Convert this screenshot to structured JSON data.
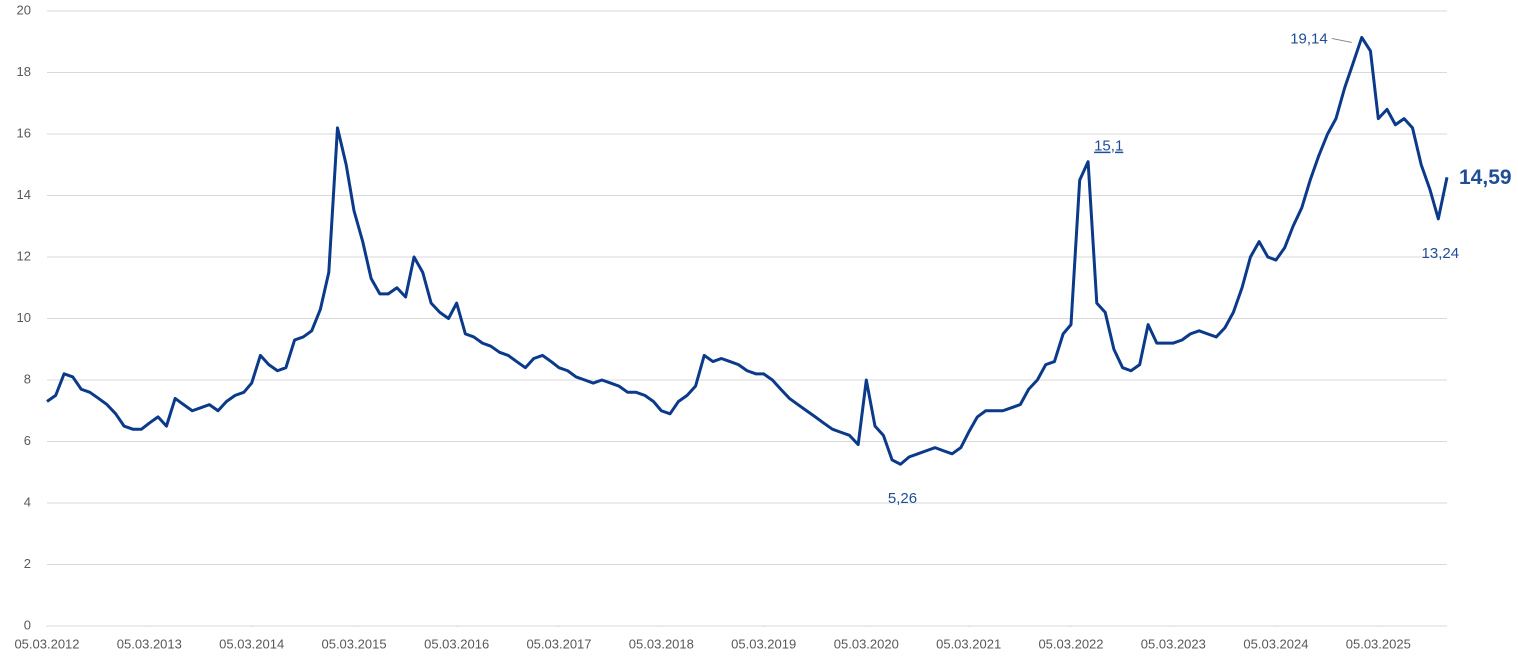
{
  "chart_data": {
    "type": "line",
    "xlim": [
      "05.03.2012",
      "05.11.2025"
    ],
    "xticks": [
      "05.03.2012",
      "05.03.2013",
      "05.03.2014",
      "05.03.2015",
      "05.03.2016",
      "05.03.2017",
      "05.03.2018",
      "05.03.2019",
      "05.03.2020",
      "05.03.2021",
      "05.03.2022",
      "05.03.2023",
      "05.03.2024",
      "05.03.2025"
    ],
    "ylim": [
      0,
      20
    ],
    "yticks": [
      0,
      2,
      4,
      6,
      8,
      10,
      12,
      14,
      16,
      18,
      20
    ],
    "grid": true,
    "x": [
      "05.03.2012",
      "05.04.2012",
      "05.05.2012",
      "05.06.2012",
      "05.07.2012",
      "05.08.2012",
      "05.09.2012",
      "05.10.2012",
      "05.11.2012",
      "05.12.2012",
      "05.01.2013",
      "05.02.2013",
      "05.03.2013",
      "05.04.2013",
      "05.05.2013",
      "05.06.2013",
      "05.07.2013",
      "05.08.2013",
      "05.09.2013",
      "05.10.2013",
      "05.11.2013",
      "05.12.2013",
      "05.01.2014",
      "05.02.2014",
      "05.03.2014",
      "05.04.2014",
      "05.05.2014",
      "05.06.2014",
      "05.07.2014",
      "05.08.2014",
      "05.09.2014",
      "05.10.2014",
      "05.11.2014",
      "05.12.2014",
      "05.01.2015",
      "05.02.2015",
      "05.03.2015",
      "05.04.2015",
      "05.05.2015",
      "05.06.2015",
      "05.07.2015",
      "05.08.2015",
      "05.09.2015",
      "05.10.2015",
      "05.11.2015",
      "05.12.2015",
      "05.01.2016",
      "05.02.2016",
      "05.03.2016",
      "05.04.2016",
      "05.05.2016",
      "05.06.2016",
      "05.07.2016",
      "05.08.2016",
      "05.09.2016",
      "05.10.2016",
      "05.11.2016",
      "05.12.2016",
      "05.01.2017",
      "05.02.2017",
      "05.03.2017",
      "05.04.2017",
      "05.05.2017",
      "05.06.2017",
      "05.07.2017",
      "05.08.2017",
      "05.09.2017",
      "05.10.2017",
      "05.11.2017",
      "05.12.2017",
      "05.01.2018",
      "05.02.2018",
      "05.03.2018",
      "05.04.2018",
      "05.05.2018",
      "05.06.2018",
      "05.07.2018",
      "05.08.2018",
      "05.09.2018",
      "05.10.2018",
      "05.11.2018",
      "05.12.2018",
      "05.01.2019",
      "05.02.2019",
      "05.03.2019",
      "05.04.2019",
      "05.05.2019",
      "05.06.2019",
      "05.07.2019",
      "05.08.2019",
      "05.09.2019",
      "05.10.2019",
      "05.11.2019",
      "05.12.2019",
      "05.01.2020",
      "05.02.2020",
      "05.03.2020",
      "05.04.2020",
      "05.05.2020",
      "05.06.2020",
      "05.07.2020",
      "05.08.2020",
      "05.09.2020",
      "05.10.2020",
      "05.11.2020",
      "05.12.2020",
      "05.01.2021",
      "05.02.2021",
      "05.03.2021",
      "05.04.2021",
      "05.05.2021",
      "05.06.2021",
      "05.07.2021",
      "05.08.2021",
      "05.09.2021",
      "05.10.2021",
      "05.11.2021",
      "05.12.2021",
      "05.01.2022",
      "05.02.2022",
      "05.03.2022",
      "05.04.2022",
      "05.05.2022",
      "05.06.2022",
      "05.07.2022",
      "05.08.2022",
      "05.09.2022",
      "05.10.2022",
      "05.11.2022",
      "05.12.2022",
      "05.01.2023",
      "05.02.2023",
      "05.03.2023",
      "05.04.2023",
      "05.05.2023",
      "05.06.2023",
      "05.07.2023",
      "05.08.2023",
      "05.09.2023",
      "05.10.2023",
      "05.11.2023",
      "05.12.2023",
      "05.01.2024",
      "05.02.2024",
      "05.03.2024",
      "05.04.2024",
      "05.05.2024",
      "05.06.2024",
      "05.07.2024",
      "05.08.2024",
      "05.09.2024",
      "05.10.2024",
      "05.11.2024",
      "05.12.2024",
      "05.01.2025",
      "05.02.2025",
      "05.03.2025",
      "05.04.2025",
      "05.05.2025",
      "05.06.2025",
      "05.07.2025",
      "05.08.2025",
      "05.09.2025",
      "05.10.2025",
      "05.11.2025"
    ],
    "series": [
      {
        "color": "#0b3a8a",
        "values": [
          7.3,
          7.5,
          8.2,
          8.1,
          7.7,
          7.6,
          7.4,
          7.2,
          6.9,
          6.5,
          6.4,
          6.4,
          6.6,
          6.8,
          6.5,
          7.4,
          7.2,
          7.0,
          7.1,
          7.2,
          7.0,
          7.3,
          7.5,
          7.6,
          7.9,
          8.8,
          8.5,
          8.3,
          8.4,
          9.3,
          9.4,
          9.6,
          10.3,
          11.5,
          16.2,
          15.0,
          13.5,
          12.5,
          11.3,
          10.8,
          10.8,
          11.0,
          10.7,
          12.0,
          11.5,
          10.5,
          10.2,
          10.0,
          10.5,
          9.5,
          9.4,
          9.2,
          9.1,
          8.9,
          8.8,
          8.6,
          8.4,
          8.7,
          8.8,
          8.6,
          8.4,
          8.3,
          8.1,
          8.0,
          7.9,
          8.0,
          7.9,
          7.8,
          7.6,
          7.6,
          7.5,
          7.3,
          7.0,
          6.9,
          7.3,
          7.5,
          7.8,
          8.8,
          8.6,
          8.7,
          8.6,
          8.5,
          8.3,
          8.2,
          8.2,
          8.0,
          7.7,
          7.4,
          7.2,
          7.0,
          6.8,
          6.6,
          6.4,
          6.3,
          6.2,
          5.9,
          8.0,
          6.5,
          6.2,
          5.4,
          5.26,
          5.5,
          5.6,
          5.7,
          5.8,
          5.7,
          5.6,
          5.8,
          6.3,
          6.8,
          7.0,
          7.0,
          7.0,
          7.1,
          7.2,
          7.7,
          8.0,
          8.5,
          8.6,
          9.5,
          9.8,
          14.5,
          15.1,
          10.5,
          10.2,
          9.0,
          8.4,
          8.3,
          8.5,
          9.8,
          9.2,
          9.2,
          9.2,
          9.3,
          9.5,
          9.6,
          9.5,
          9.4,
          9.7,
          10.2,
          11.0,
          12.0,
          12.5,
          12.0,
          11.9,
          12.3,
          13.0,
          13.6,
          14.5,
          15.3,
          16.0,
          16.5,
          17.5,
          18.3,
          19.14,
          18.7,
          16.5,
          16.8,
          16.3,
          16.5,
          16.2,
          15.0,
          14.2,
          13.24,
          14.59
        ]
      }
    ],
    "annotations": [
      {
        "label": "19,14",
        "x": "05.01.2025",
        "value": 19.14,
        "side": "left"
      },
      {
        "label": "15,1",
        "x": "05.05.2022",
        "value": 15.1,
        "side": "above"
      },
      {
        "label": "5,26",
        "x": "05.07.2020",
        "value": 5.26,
        "side": "below"
      },
      {
        "label": "13,24",
        "x": "05.10.2025",
        "value": 13.24,
        "side": "below"
      },
      {
        "label": "14,59",
        "x": "05.11.2025",
        "value": 14.59,
        "side": "right"
      }
    ]
  }
}
